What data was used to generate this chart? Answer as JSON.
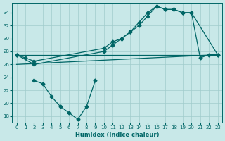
{
  "xlabel": "Humidex (Indice chaleur)",
  "bg_color": "#c8e8e8",
  "line_color": "#006666",
  "grid_color": "#a0cccc",
  "xlim": [
    -0.5,
    23.5
  ],
  "ylim": [
    17,
    35.5
  ],
  "xticks": [
    0,
    1,
    2,
    3,
    4,
    5,
    6,
    7,
    8,
    9,
    10,
    11,
    12,
    13,
    14,
    15,
    16,
    17,
    18,
    19,
    20,
    21,
    22,
    23
  ],
  "yticks": [
    18,
    20,
    22,
    24,
    26,
    28,
    30,
    32,
    34
  ],
  "lines": [
    {
      "x": [
        0,
        1,
        2,
        10,
        11,
        12,
        13,
        14,
        15,
        16,
        17,
        18,
        19,
        20,
        23
      ],
      "y": [
        27.5,
        27.0,
        26.5,
        28.5,
        29.5,
        30.0,
        31.0,
        32.5,
        34.0,
        35.0,
        34.5,
        34.5,
        34.0,
        34.0,
        27.5
      ],
      "marker": true
    },
    {
      "x": [
        0,
        2,
        10,
        11,
        12,
        13,
        14,
        15,
        16,
        17,
        18,
        19,
        20,
        21,
        22,
        23
      ],
      "y": [
        27.5,
        26.0,
        28.0,
        29.0,
        30.0,
        31.0,
        32.0,
        33.5,
        35.0,
        34.5,
        34.5,
        34.0,
        34.0,
        27.0,
        27.5,
        27.5
      ],
      "marker": true
    },
    {
      "x": [
        0,
        23
      ],
      "y": [
        27.5,
        27.5
      ],
      "marker": false
    },
    {
      "x": [
        0,
        23
      ],
      "y": [
        26.0,
        27.5
      ],
      "marker": false
    },
    {
      "x": [
        2,
        3,
        4,
        5,
        6,
        7,
        8,
        9
      ],
      "y": [
        23.5,
        23.0,
        21.0,
        19.5,
        18.5,
        17.5,
        19.5,
        23.5
      ],
      "marker": true
    }
  ]
}
